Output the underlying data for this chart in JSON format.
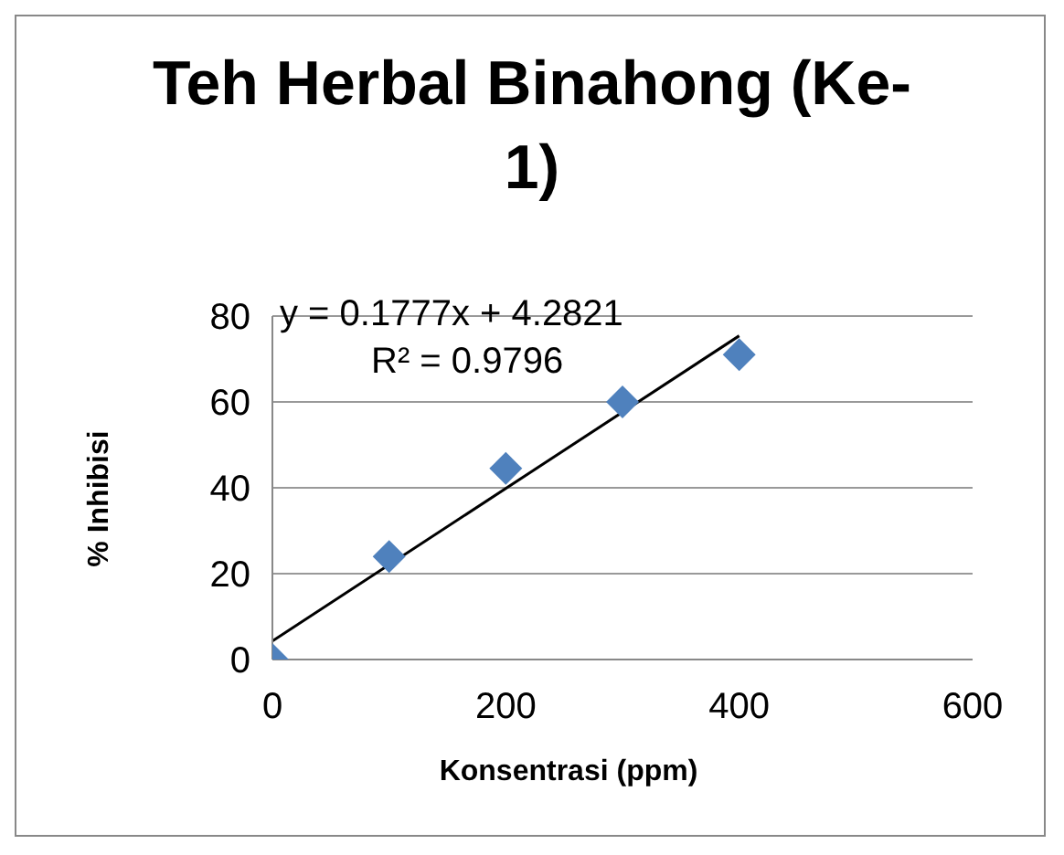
{
  "chart_data": {
    "type": "scatter",
    "title": "Teh Herbal Binahong (Ke-1)",
    "xlabel": "Konsentrasi (ppm)",
    "ylabel": "% Inhibisi",
    "x": [
      0,
      100,
      200,
      300,
      400
    ],
    "series": [
      {
        "color": "#4f81bd",
        "values": [
          0,
          24,
          44.5,
          60,
          71
        ],
        "marker": "diamond"
      },
      {
        "type": "line",
        "color": "#000000",
        "x": [
          0,
          400
        ],
        "values": [
          4.3,
          75.4
        ],
        "marker": "none"
      }
    ],
    "xlim": [
      0,
      600
    ],
    "xticks": [
      0,
      200,
      400,
      600
    ],
    "ylim": [
      0,
      80
    ],
    "yticks": [
      0,
      20,
      40,
      60,
      80
    ],
    "grid": "y",
    "annotations": [
      "y = 0.1777x + 4.2821",
      "R² = 0.9796"
    ]
  }
}
